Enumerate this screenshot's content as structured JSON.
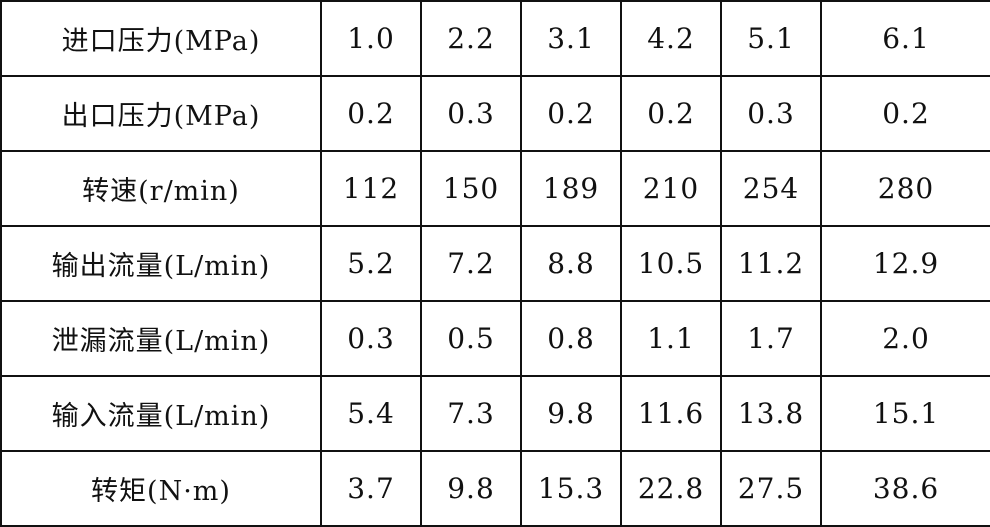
{
  "table": {
    "rows": [
      {
        "label": "进口压力(MPa)",
        "values": [
          "1.0",
          "2.2",
          "3.1",
          "4.2",
          "5.1",
          "6.1"
        ]
      },
      {
        "label": "出口压力(MPa)",
        "values": [
          "0.2",
          "0.3",
          "0.2",
          "0.2",
          "0.3",
          "0.2"
        ]
      },
      {
        "label": "转速(r/min)",
        "values": [
          "112",
          "150",
          "189",
          "210",
          "254",
          "280"
        ]
      },
      {
        "label": "输出流量(L/min)",
        "values": [
          "5.2",
          "7.2",
          "8.8",
          "10.5",
          "11.2",
          "12.9"
        ]
      },
      {
        "label": "泄漏流量(L/min)",
        "values": [
          "0.3",
          "0.5",
          "0.8",
          "1.1",
          "1.7",
          "2.0"
        ]
      },
      {
        "label": "输入流量(L/min)",
        "values": [
          "5.4",
          "7.3",
          "9.8",
          "11.6",
          "13.8",
          "15.1"
        ]
      },
      {
        "label": "转矩(N·m)",
        "values": [
          "3.7",
          "9.8",
          "15.3",
          "22.8",
          "27.5",
          "38.6"
        ]
      }
    ]
  }
}
